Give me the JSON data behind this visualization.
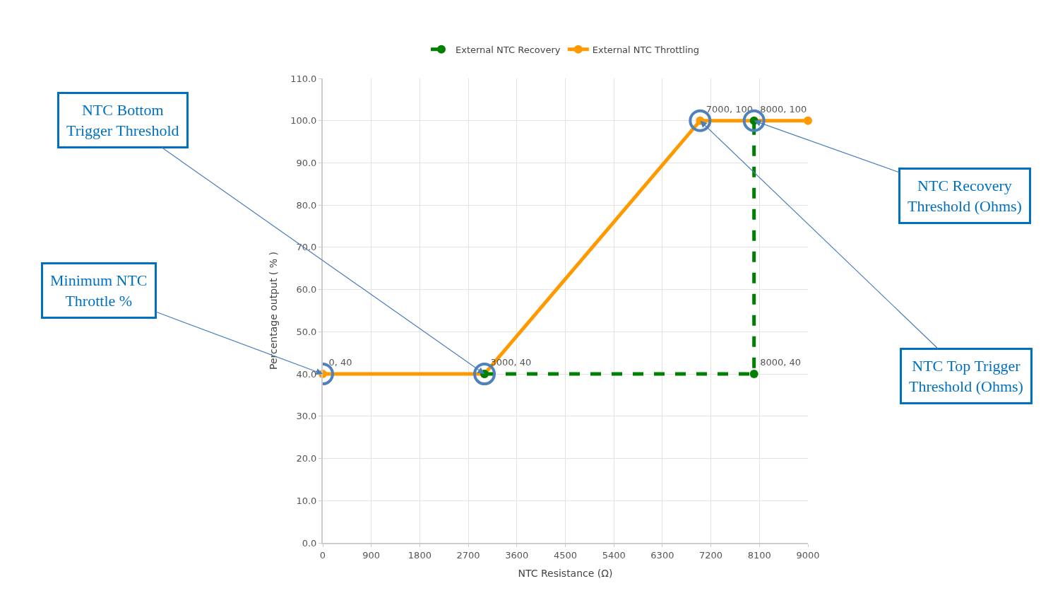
{
  "chart_data": {
    "type": "line",
    "xlabel": "NTC Resistance (Ω)",
    "ylabel": "Percentage output ( % )",
    "xlim": [
      0,
      9000
    ],
    "xticks": [
      0,
      900,
      1800,
      2700,
      3600,
      4500,
      5400,
      6300,
      7200,
      8100,
      9000
    ],
    "ylim": [
      0,
      110
    ],
    "yticks": [
      {
        "value": 0,
        "label": "0.0"
      },
      {
        "value": 10,
        "label": "10.0"
      },
      {
        "value": 20,
        "label": "20.0"
      },
      {
        "value": 30,
        "label": "30.0"
      },
      {
        "value": 40,
        "label": "40.0"
      },
      {
        "value": 50,
        "label": "50.0"
      },
      {
        "value": 60,
        "label": "60.0"
      },
      {
        "value": 70,
        "label": "70.0"
      },
      {
        "value": 80,
        "label": "80.0"
      },
      {
        "value": 90,
        "label": "90.0"
      },
      {
        "value": 100,
        "label": "100.0"
      },
      {
        "value": 110,
        "label": "110.0"
      }
    ],
    "grid": true,
    "legend": "top",
    "marker": "circle",
    "series": [
      {
        "name": "External NTC Recovery",
        "color": "#008000",
        "line_style": "dashed",
        "x": [
          3000,
          8000,
          8000
        ],
        "values": [
          40,
          40,
          100
        ],
        "value_labels": [
          null,
          "8000, 40",
          "8000, 100"
        ]
      },
      {
        "name": "External NTC Throttling",
        "color": "#ff9900",
        "line_style": "solid",
        "x": [
          0,
          3000,
          7000,
          9000
        ],
        "values": [
          40,
          40,
          100,
          100
        ],
        "value_labels": [
          "0, 40",
          "3000, 40",
          "7000, 100",
          null
        ]
      }
    ],
    "annotations": [
      {
        "text": "Minimum NTC\nThrottle %",
        "x": 0,
        "y": 40
      },
      {
        "text": "NTC Bottom\nTrigger Threshold",
        "x": 3000,
        "y": 40
      },
      {
        "text": "NTC Recovery\nThreshold (Ohms)",
        "x": 8000,
        "y": 100
      },
      {
        "text": "NTC Top Trigger\nThreshold (Ohms)",
        "x": 7000,
        "y": 100
      }
    ]
  }
}
